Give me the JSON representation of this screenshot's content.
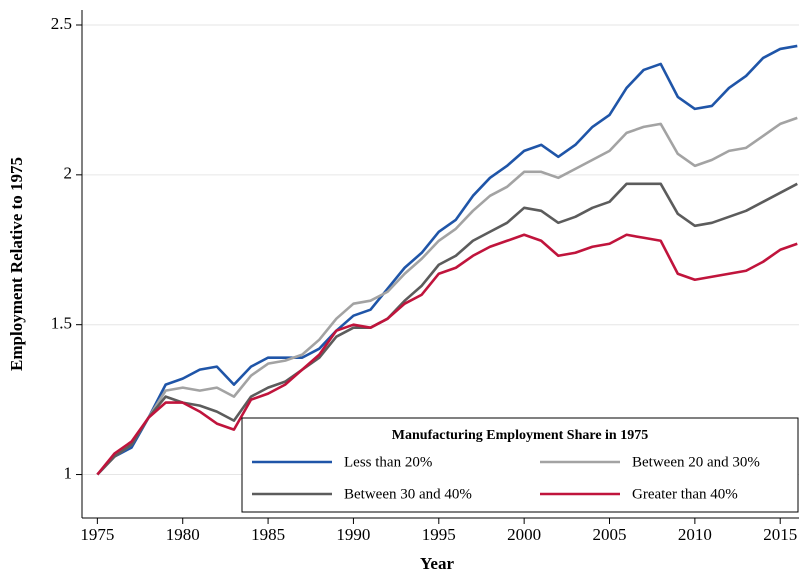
{
  "chart_data": {
    "type": "line",
    "x_label": "Year",
    "y_label": "Employment Relative to 1975",
    "legend_title": "Manufacturing Employment Share in 1975",
    "x": [
      1975,
      1976,
      1977,
      1978,
      1979,
      1980,
      1981,
      1982,
      1983,
      1984,
      1985,
      1986,
      1987,
      1988,
      1989,
      1990,
      1991,
      1992,
      1993,
      1994,
      1995,
      1996,
      1997,
      1998,
      1999,
      2000,
      2001,
      2002,
      2003,
      2004,
      2005,
      2006,
      2007,
      2008,
      2009,
      2010,
      2011,
      2012,
      2013,
      2014,
      2015,
      2016
    ],
    "series": [
      {
        "name": "Less than 20%",
        "color": "#1f55a8",
        "values": [
          1.0,
          1.06,
          1.09,
          1.19,
          1.3,
          1.32,
          1.35,
          1.36,
          1.3,
          1.36,
          1.39,
          1.39,
          1.39,
          1.42,
          1.48,
          1.53,
          1.55,
          1.62,
          1.69,
          1.74,
          1.81,
          1.85,
          1.93,
          1.99,
          2.03,
          2.08,
          2.1,
          2.06,
          2.1,
          2.16,
          2.2,
          2.29,
          2.35,
          2.37,
          2.26,
          2.22,
          2.23,
          2.29,
          2.33,
          2.39,
          2.42,
          2.43
        ]
      },
      {
        "name": "Between 20 and 30%",
        "color": "#a3a3a3",
        "values": [
          1.0,
          1.06,
          1.1,
          1.19,
          1.28,
          1.29,
          1.28,
          1.29,
          1.26,
          1.33,
          1.37,
          1.38,
          1.4,
          1.45,
          1.52,
          1.57,
          1.58,
          1.61,
          1.67,
          1.72,
          1.78,
          1.82,
          1.88,
          1.93,
          1.96,
          2.01,
          2.01,
          1.99,
          2.02,
          2.05,
          2.08,
          2.14,
          2.16,
          2.17,
          2.07,
          2.03,
          2.05,
          2.08,
          2.09,
          2.13,
          2.17,
          2.19
        ]
      },
      {
        "name": "Between 30 and 40%",
        "color": "#5c5c5c",
        "values": [
          1.0,
          1.06,
          1.1,
          1.19,
          1.26,
          1.24,
          1.23,
          1.21,
          1.18,
          1.26,
          1.29,
          1.31,
          1.35,
          1.39,
          1.46,
          1.49,
          1.49,
          1.52,
          1.58,
          1.63,
          1.7,
          1.73,
          1.78,
          1.81,
          1.84,
          1.89,
          1.88,
          1.84,
          1.86,
          1.89,
          1.91,
          1.97,
          1.97,
          1.97,
          1.87,
          1.83,
          1.84,
          1.86,
          1.88,
          1.91,
          1.94,
          1.97
        ]
      },
      {
        "name": "Greater than 40%",
        "color": "#c0143c",
        "values": [
          1.0,
          1.07,
          1.11,
          1.19,
          1.24,
          1.24,
          1.21,
          1.17,
          1.15,
          1.25,
          1.27,
          1.3,
          1.35,
          1.4,
          1.48,
          1.5,
          1.49,
          1.52,
          1.57,
          1.6,
          1.67,
          1.69,
          1.73,
          1.76,
          1.78,
          1.8,
          1.78,
          1.73,
          1.74,
          1.76,
          1.77,
          1.8,
          1.79,
          1.78,
          1.67,
          1.65,
          1.66,
          1.67,
          1.68,
          1.71,
          1.75,
          1.77
        ]
      }
    ],
    "xlim": [
      1974.1,
      2016.1
    ],
    "ylim": [
      0.855,
      2.55
    ],
    "xticks": [
      1975,
      1980,
      1985,
      1990,
      1995,
      2000,
      2005,
      2010,
      2015
    ],
    "yticks": [
      1,
      1.5,
      2,
      2.5
    ],
    "grid": true
  }
}
